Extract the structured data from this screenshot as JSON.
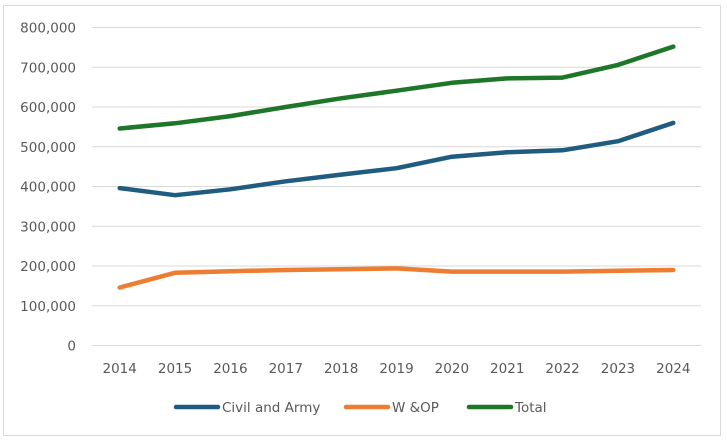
{
  "chart_data": {
    "type": "line",
    "title": "",
    "xlabel": "",
    "ylabel": "",
    "categories": [
      "2014",
      "2015",
      "2016",
      "2017",
      "2018",
      "2019",
      "2020",
      "2021",
      "2022",
      "2023",
      "2024"
    ],
    "ylim": [
      0,
      800000
    ],
    "yticks": [
      0,
      100000,
      200000,
      300000,
      400000,
      500000,
      600000,
      700000,
      800000
    ],
    "ytick_labels": [
      "0",
      "100,000",
      "200,000",
      "300,000",
      "400,000",
      "500,000",
      "600,000",
      "700,000",
      "800,000"
    ],
    "grid": true,
    "legend_position": "bottom",
    "series": [
      {
        "name": "Civil and Army",
        "color": "#1F5C80",
        "values": [
          396000,
          378000,
          393000,
          413000,
          430000,
          446000,
          475000,
          486000,
          491000,
          514000,
          560000
        ]
      },
      {
        "name": "W &OP",
        "color": "#ED7D31",
        "values": [
          146000,
          183000,
          187000,
          190000,
          192000,
          194000,
          186000,
          186000,
          186000,
          188000,
          190000
        ]
      },
      {
        "name": "Total",
        "color": "#1E7628",
        "values": [
          546000,
          559000,
          577000,
          600000,
          622000,
          641000,
          661000,
          672000,
          674000,
          706000,
          752000
        ]
      }
    ]
  }
}
